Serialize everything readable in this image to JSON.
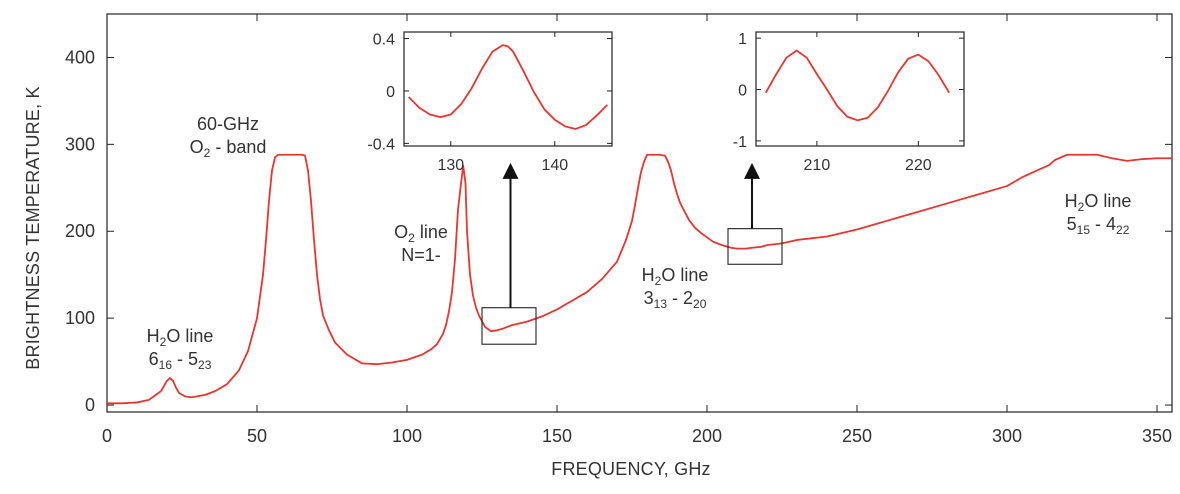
{
  "chart_data": [
    {
      "id": "main",
      "type": "line",
      "xlabel": "FREQUENCY,  GHz",
      "ylabel": "BRIGHTNESS TEMPERATURE,  K",
      "xlim": [
        0,
        355
      ],
      "ylim": [
        -8,
        450
      ],
      "xticks": [
        0,
        50,
        100,
        150,
        200,
        250,
        300,
        350
      ],
      "yticks": [
        0,
        100,
        200,
        300,
        400
      ],
      "grid": false,
      "color": "#e8352f",
      "series": [
        {
          "x": [
            0,
            5,
            10,
            14,
            16,
            18,
            19,
            20,
            21,
            22,
            23,
            24,
            26,
            28,
            30,
            33,
            36,
            40,
            44,
            47,
            50,
            52,
            53,
            54,
            55,
            56,
            57,
            58,
            59,
            60,
            62,
            64,
            65,
            66,
            67,
            68,
            69,
            70,
            71,
            72,
            74,
            76,
            80,
            85,
            90,
            95,
            100,
            105,
            108,
            110,
            112,
            113,
            114,
            115,
            116,
            117,
            118,
            118.75,
            119.5,
            120,
            121,
            122,
            123,
            124,
            126,
            128,
            130,
            132,
            135,
            140,
            145,
            150,
            155,
            160,
            165,
            170,
            173,
            175,
            176,
            177,
            178,
            179,
            180,
            182,
            184,
            186,
            187,
            188,
            189,
            190,
            191,
            192,
            194,
            196,
            198,
            200,
            202,
            205,
            208,
            210,
            213,
            215,
            218,
            220,
            225,
            230,
            240,
            250,
            260,
            270,
            280,
            290,
            300,
            305,
            310,
            314,
            316,
            318,
            320,
            322,
            325,
            330,
            335,
            340,
            345,
            350,
            355
          ],
          "y": [
            2,
            2,
            3,
            6,
            11,
            16,
            22,
            28,
            31,
            28,
            20,
            14,
            10,
            9,
            10,
            12,
            16,
            24,
            40,
            62,
            100,
            150,
            190,
            235,
            270,
            285,
            288,
            288,
            288,
            288,
            288,
            288,
            288,
            287,
            270,
            235,
            190,
            150,
            122,
            103,
            86,
            72,
            58,
            48,
            47,
            49,
            52,
            58,
            64,
            70,
            82,
            92,
            108,
            130,
            168,
            225,
            255,
            275,
            255,
            200,
            150,
            126,
            112,
            103,
            90,
            85,
            86,
            88,
            92,
            96,
            102,
            110,
            120,
            130,
            145,
            165,
            190,
            212,
            230,
            250,
            268,
            280,
            288,
            288,
            288,
            287,
            280,
            270,
            255,
            243,
            233,
            226,
            213,
            204,
            198,
            193,
            188,
            184,
            181,
            180,
            180,
            181,
            182,
            184,
            186,
            190,
            194,
            202,
            212,
            222,
            232,
            242,
            252,
            262,
            270,
            276,
            282,
            285,
            288,
            288,
            288,
            288,
            284,
            281,
            283,
            284,
            284
          ]
        }
      ],
      "boxes": [
        {
          "x": [
            125,
            143
          ],
          "y": [
            70,
            112
          ]
        },
        {
          "x": [
            207,
            225
          ],
          "y": [
            162,
            203
          ]
        }
      ],
      "arrows": [
        {
          "x": 134.5,
          "y_from": 112,
          "y_to": 275
        },
        {
          "x": 215,
          "y_from": 203,
          "y_to": 275
        }
      ],
      "annotations": [
        {
          "id": "h2o-22",
          "lines": [
            {
              "main": "H",
              "sub": "2",
              "rest": "O line"
            },
            {
              "main": "6",
              "sub": "16",
              "rest": " - 5",
              "sub2": "23"
            }
          ]
        },
        {
          "id": "o2-60",
          "lines": [
            {
              "main": "60-GHz"
            },
            {
              "main": "O",
              "sub": "2",
              "rest": " - band"
            }
          ]
        },
        {
          "id": "o2-119",
          "lines": [
            {
              "main": "O",
              "sub": "2",
              "rest": " line"
            },
            {
              "main": "N=1-"
            }
          ]
        },
        {
          "id": "h2o-183",
          "lines": [
            {
              "main": "H",
              "sub": "2",
              "rest": "O line"
            },
            {
              "main": "3",
              "sub": "13",
              "rest": " - 2",
              "sub2": "20"
            }
          ]
        },
        {
          "id": "h2o-325",
          "lines": [
            {
              "main": "H",
              "sub": "2",
              "rest": "O line"
            },
            {
              "main": "5",
              "sub": "15",
              "rest": " - 4",
              "sub2": "22"
            }
          ]
        }
      ]
    },
    {
      "id": "inset1",
      "type": "line",
      "xlim": [
        125.5,
        145.5
      ],
      "ylim": [
        -0.42,
        0.45
      ],
      "xticks": [
        130,
        140
      ],
      "yticks": [
        0.4,
        0,
        -0.4
      ],
      "ytick_labels": [
        "0.4",
        "0",
        "-0.4"
      ],
      "color": "#e8352f",
      "series": [
        {
          "x": [
            126,
            127,
            128,
            129,
            130,
            131,
            132,
            133,
            134,
            135,
            135.5,
            136,
            137,
            138,
            139,
            140,
            141,
            142,
            143,
            144,
            145
          ],
          "y": [
            -0.05,
            -0.13,
            -0.18,
            -0.2,
            -0.18,
            -0.1,
            0.02,
            0.17,
            0.3,
            0.35,
            0.34,
            0.3,
            0.15,
            -0.01,
            -0.14,
            -0.22,
            -0.27,
            -0.29,
            -0.26,
            -0.19,
            -0.11
          ]
        }
      ]
    },
    {
      "id": "inset2",
      "type": "line",
      "xlim": [
        204,
        224.5
      ],
      "ylim": [
        -1.1,
        1.12
      ],
      "xticks": [
        210,
        220
      ],
      "yticks": [
        1,
        0,
        -1
      ],
      "ytick_labels": [
        "1",
        "0",
        "-1"
      ],
      "color": "#e8352f",
      "series": [
        {
          "x": [
            205,
            206,
            207,
            208,
            209,
            210,
            211,
            212,
            213,
            214,
            215,
            216,
            217,
            218,
            219,
            220,
            221,
            222,
            223
          ],
          "y": [
            -0.05,
            0.3,
            0.62,
            0.76,
            0.62,
            0.3,
            0.0,
            -0.32,
            -0.53,
            -0.6,
            -0.55,
            -0.35,
            -0.03,
            0.33,
            0.6,
            0.68,
            0.55,
            0.28,
            -0.05
          ]
        }
      ]
    }
  ]
}
